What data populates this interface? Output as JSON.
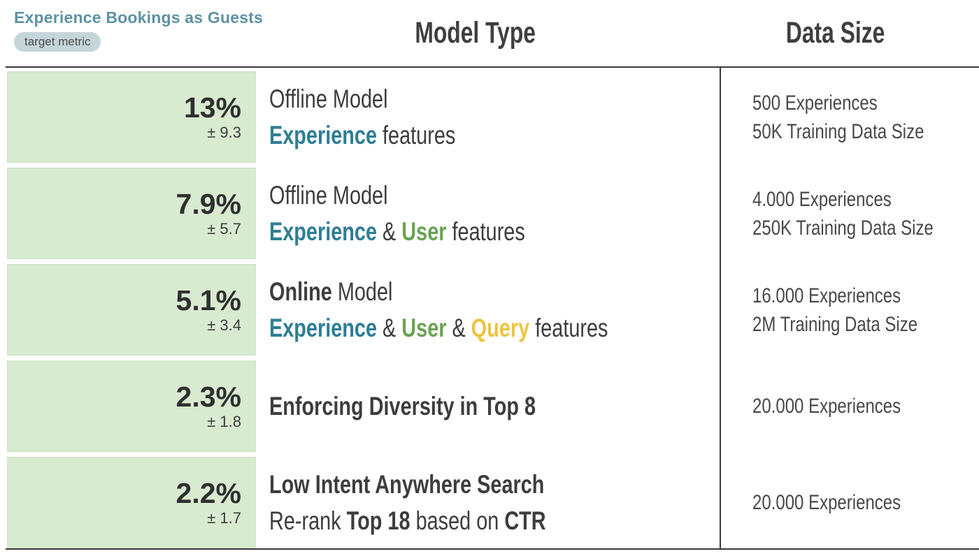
{
  "header": {
    "title": "Experience Bookings as Guests",
    "badge": "target metric",
    "columns": {
      "model": "Model Type",
      "data": "Data Size"
    }
  },
  "colors": {
    "title_teal": "#5d92a3",
    "badge_bg": "#c5d6da",
    "metric_box_bg": "#d8ead0",
    "experience_teal": "#2e7e95",
    "user_green": "#6aa353",
    "query_yellow": "#ecc43e",
    "text_dark": "#3d3d3d",
    "rule_dark": "#3a3a3a"
  },
  "rows": [
    {
      "metric": {
        "value": "13%",
        "error": "± 9.3"
      },
      "model_lines": [
        [
          {
            "t": "Offline Model",
            "c": "dark",
            "b": false
          }
        ],
        [
          {
            "t": "Experience",
            "c": "teal",
            "b": true
          },
          {
            "t": " features",
            "c": "dark",
            "b": false
          }
        ]
      ],
      "data_lines": [
        "500 Experiences",
        "50K Training Data Size"
      ]
    },
    {
      "metric": {
        "value": "7.9%",
        "error": "± 5.7"
      },
      "model_lines": [
        [
          {
            "t": "Offline Model",
            "c": "dark",
            "b": false
          }
        ],
        [
          {
            "t": "Experience",
            "c": "teal",
            "b": true
          },
          {
            "t": " & ",
            "c": "dark",
            "b": false
          },
          {
            "t": "User",
            "c": "green",
            "b": true
          },
          {
            "t": " features",
            "c": "dark",
            "b": false
          }
        ]
      ],
      "data_lines": [
        "4.000 Experiences",
        "250K Training Data Size"
      ]
    },
    {
      "metric": {
        "value": "5.1%",
        "error": "± 3.4"
      },
      "model_lines": [
        [
          {
            "t": "Online",
            "c": "dark",
            "b": true
          },
          {
            "t": " Model",
            "c": "dark",
            "b": false
          }
        ],
        [
          {
            "t": "Experience",
            "c": "teal",
            "b": true
          },
          {
            "t": " & ",
            "c": "dark",
            "b": false
          },
          {
            "t": "User",
            "c": "green",
            "b": true
          },
          {
            "t": " & ",
            "c": "dark",
            "b": false
          },
          {
            "t": "Query",
            "c": "yellow",
            "b": true
          },
          {
            "t": " features",
            "c": "dark",
            "b": false
          }
        ]
      ],
      "data_lines": [
        "16.000 Experiences",
        "2M Training Data Size"
      ]
    },
    {
      "metric": {
        "value": "2.3%",
        "error": "± 1.8"
      },
      "model_lines": [
        [
          {
            "t": "Enforcing Diversity in Top 8",
            "c": "dark",
            "b": true
          }
        ]
      ],
      "data_lines": [
        "20.000 Experiences"
      ]
    },
    {
      "metric": {
        "value": "2.2%",
        "error": "± 1.7"
      },
      "model_lines": [
        [
          {
            "t": "Low Intent Anywhere Search",
            "c": "dark",
            "b": true
          }
        ],
        [
          {
            "t": "Re-rank ",
            "c": "dark",
            "b": false
          },
          {
            "t": "Top 18",
            "c": "dark",
            "b": true
          },
          {
            "t": " based on ",
            "c": "dark",
            "b": false
          },
          {
            "t": "CTR",
            "c": "dark",
            "b": true
          }
        ]
      ],
      "data_lines": [
        "20.000 Experiences"
      ]
    }
  ]
}
